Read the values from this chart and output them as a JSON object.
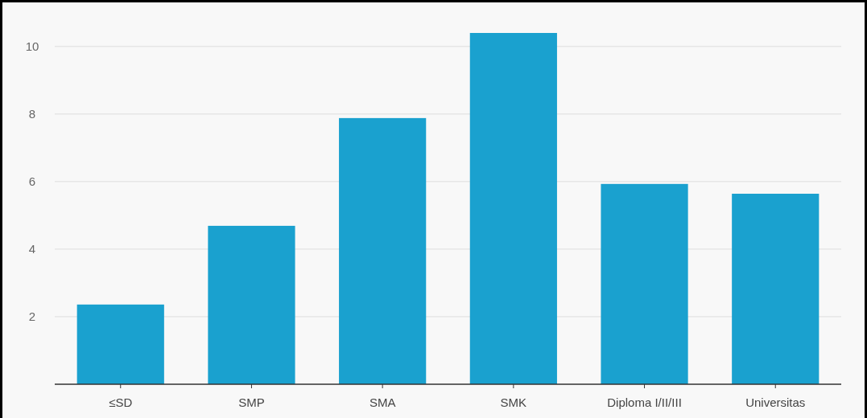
{
  "chart_data": {
    "type": "bar",
    "categories": [
      "≤SD",
      "SMP",
      "SMA",
      "SMK",
      "Diploma I/II/III",
      "Universitas"
    ],
    "values": [
      2.36,
      4.69,
      7.88,
      10.4,
      5.93,
      5.64
    ],
    "color": "#1aa1cf",
    "ylim": [
      0,
      10.4
    ],
    "yticks": [
      2,
      4,
      6,
      8,
      10
    ],
    "grid": "y"
  }
}
